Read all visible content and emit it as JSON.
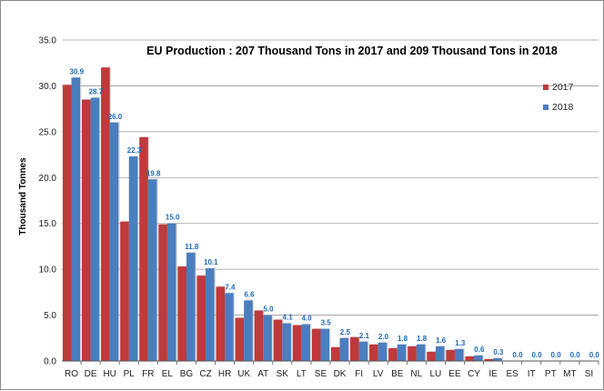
{
  "chart_data": {
    "type": "bar",
    "title": "EU Production : 207 Thousand Tons in 2017 and 209 Thousand Tons in 2018",
    "ylabel": "Thousand Tonnes",
    "xlabel": "",
    "ylim": [
      0,
      35
    ],
    "yticks": [
      "0.0",
      "5.0",
      "10.0",
      "15.0",
      "20.0",
      "25.0",
      "30.0",
      "35.0"
    ],
    "grid": true,
    "legend_position": "right",
    "categories": [
      "RO",
      "DE",
      "HU",
      "PL",
      "FR",
      "EL",
      "BG",
      "CZ",
      "HR",
      "UK",
      "AT",
      "SK",
      "LT",
      "SE",
      "DK",
      "FI",
      "LV",
      "BE",
      "NL",
      "LU",
      "EE",
      "CY",
      "IE",
      "ES",
      "IT",
      "PT",
      "MT",
      "SI"
    ],
    "series": [
      {
        "name": "2017",
        "color": "#c0393b",
        "values": [
          30.1,
          28.5,
          32.0,
          15.2,
          24.4,
          14.9,
          10.3,
          9.3,
          8.1,
          4.7,
          5.5,
          4.5,
          3.9,
          3.5,
          1.5,
          2.6,
          1.8,
          1.4,
          1.6,
          1.0,
          1.2,
          0.5,
          0.2,
          0.0,
          0.0,
          0.0,
          0.0,
          0.0
        ]
      },
      {
        "name": "2018",
        "color": "#4a7ebf",
        "values": [
          30.9,
          28.7,
          26.0,
          22.3,
          19.8,
          15.0,
          11.8,
          10.1,
          7.4,
          6.6,
          5.0,
          4.1,
          4.0,
          3.5,
          2.5,
          2.1,
          2.0,
          1.8,
          1.8,
          1.6,
          1.3,
          0.6,
          0.3,
          0.0,
          0.0,
          0.0,
          0.0,
          0.0
        ],
        "labels": [
          "30.9",
          "28.7",
          "26.0",
          "22.3",
          "19.8",
          "15.0",
          "11.8",
          "10.1",
          "7.4",
          "6.6",
          "5.0",
          "4.1",
          "4.0",
          "3.5",
          "2.5",
          "2.1",
          "2.0",
          "1.8",
          "1.8",
          "1.6",
          "1.3",
          "0.6",
          "0.3",
          "0.0",
          "0.0",
          "0.0",
          "0.0",
          "0.0"
        ]
      }
    ]
  }
}
